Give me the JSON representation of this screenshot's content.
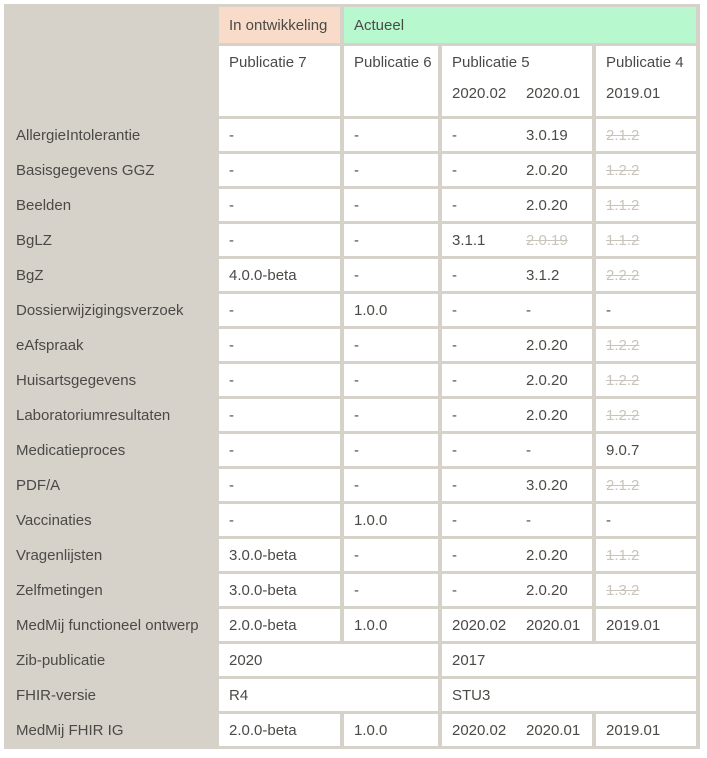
{
  "table": {
    "groups": [
      {
        "label": "In ontwikkeling",
        "color": "#f8dbc8"
      },
      {
        "label": "Actueel",
        "color": "#b7f8cf"
      }
    ],
    "columns": [
      {
        "title": "Publicatie 7",
        "subs": []
      },
      {
        "title": "Publicatie 6",
        "subs": []
      },
      {
        "title": "Publicatie 5",
        "subs": [
          "2020.02",
          "2020.01"
        ]
      },
      {
        "title": "Publicatie 4",
        "subs": [
          "2019.01"
        ]
      }
    ],
    "rows": [
      {
        "label": "AllergieIntolerantie",
        "cells": [
          {
            "v": "-"
          },
          {
            "v": "-"
          },
          {
            "v": "-",
            "v2": "3.0.19"
          },
          {
            "v": "2.1.2",
            "struck": true
          }
        ]
      },
      {
        "label": "Basisgegevens GGZ",
        "cells": [
          {
            "v": "-"
          },
          {
            "v": "-"
          },
          {
            "v": "-",
            "v2": "2.0.20"
          },
          {
            "v": "1.2.2",
            "struck": true
          }
        ]
      },
      {
        "label": "Beelden",
        "cells": [
          {
            "v": "-"
          },
          {
            "v": "-"
          },
          {
            "v": "-",
            "v2": "2.0.20"
          },
          {
            "v": "1.1.2",
            "struck": true
          }
        ]
      },
      {
        "label": "BgLZ",
        "cells": [
          {
            "v": "-"
          },
          {
            "v": "-"
          },
          {
            "v": "3.1.1",
            "v2": "2.0.19",
            "struck2": true
          },
          {
            "v": "1.1.2",
            "struck": true
          }
        ]
      },
      {
        "label": "BgZ",
        "cells": [
          {
            "v": "4.0.0-beta"
          },
          {
            "v": "-"
          },
          {
            "v": "-",
            "v2": "3.1.2"
          },
          {
            "v": "2.2.2",
            "struck": true
          }
        ]
      },
      {
        "label": "Dossierwijzigingsverzoek",
        "cells": [
          {
            "v": "-"
          },
          {
            "v": "1.0.0"
          },
          {
            "v": "-",
            "v2": "-"
          },
          {
            "v": "-"
          }
        ]
      },
      {
        "label": "eAfspraak",
        "cells": [
          {
            "v": "-"
          },
          {
            "v": "-"
          },
          {
            "v": "-",
            "v2": "2.0.20"
          },
          {
            "v": "1.2.2",
            "struck": true
          }
        ]
      },
      {
        "label": "Huisartsgegevens",
        "cells": [
          {
            "v": "-"
          },
          {
            "v": "-"
          },
          {
            "v": "-",
            "v2": "2.0.20"
          },
          {
            "v": "1.2.2",
            "struck": true
          }
        ]
      },
      {
        "label": "Laboratoriumresultaten",
        "cells": [
          {
            "v": "-"
          },
          {
            "v": "-"
          },
          {
            "v": "-",
            "v2": "2.0.20"
          },
          {
            "v": "1.2.2",
            "struck": true
          }
        ]
      },
      {
        "label": "Medicatieproces",
        "cells": [
          {
            "v": "-"
          },
          {
            "v": "-"
          },
          {
            "v": "-",
            "v2": "-"
          },
          {
            "v": "9.0.7"
          }
        ]
      },
      {
        "label": "PDF/A",
        "cells": [
          {
            "v": "-"
          },
          {
            "v": "-"
          },
          {
            "v": "-",
            "v2": "3.0.20"
          },
          {
            "v": "2.1.2",
            "struck": true
          }
        ]
      },
      {
        "label": "Vaccinaties",
        "cells": [
          {
            "v": "-"
          },
          {
            "v": "1.0.0"
          },
          {
            "v": "-",
            "v2": "-"
          },
          {
            "v": "-"
          }
        ]
      },
      {
        "label": "Vragenlijsten",
        "cells": [
          {
            "v": "3.0.0-beta"
          },
          {
            "v": "-"
          },
          {
            "v": "-",
            "v2": "2.0.20"
          },
          {
            "v": "1.1.2",
            "struck": true
          }
        ]
      },
      {
        "label": "Zelfmetingen",
        "cells": [
          {
            "v": "3.0.0-beta"
          },
          {
            "v": "-"
          },
          {
            "v": "-",
            "v2": "2.0.20"
          },
          {
            "v": "1.3.2",
            "struck": true
          }
        ]
      },
      {
        "label": "MedMij functioneel ontwerp",
        "cells": [
          {
            "v": "2.0.0-beta"
          },
          {
            "v": "1.0.0"
          },
          {
            "v": "2020.02",
            "v2": "2020.01"
          },
          {
            "v": "2019.01"
          }
        ]
      },
      {
        "label": "Zib-publicatie",
        "cells": [
          {
            "v": "2020",
            "span": 2
          },
          {
            "v": "2017",
            "span": 2
          }
        ]
      },
      {
        "label": "FHIR-versie",
        "cells": [
          {
            "v": "R4",
            "span": 2
          },
          {
            "v": "STU3",
            "span": 2
          }
        ]
      },
      {
        "label": "MedMij FHIR IG",
        "cells": [
          {
            "v": "2.0.0-beta"
          },
          {
            "v": "1.0.0"
          },
          {
            "v": "2020.02",
            "v2": "2020.01"
          },
          {
            "v": "2019.01"
          }
        ]
      }
    ]
  }
}
